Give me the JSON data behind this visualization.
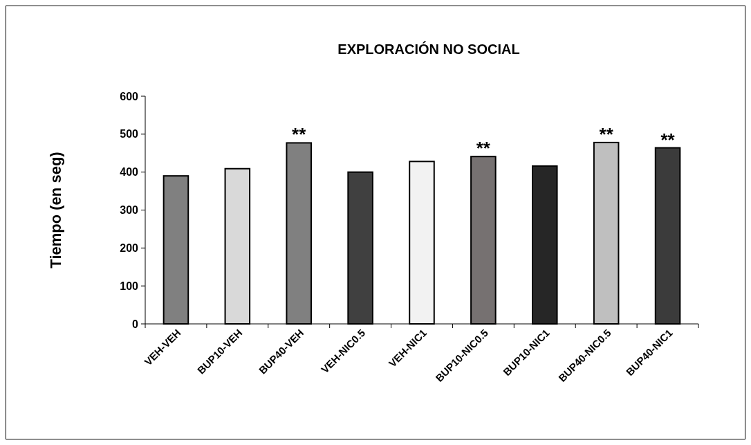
{
  "chart_data": {
    "type": "bar",
    "title": "EXPLORACIÓN NO SOCIAL",
    "ylabel": "Tiempo (en seg)",
    "categories": [
      "VEH-VEH",
      "BUP10-VEH",
      "BUP40-VEH",
      "VEH-NIC0.5",
      "VEH-NIC1",
      "BUP10-NIC0.5",
      "BUP10-NIC1",
      "BUP40-NIC0.5",
      "BUP40-NIC1"
    ],
    "values": [
      390,
      409,
      477,
      400,
      428,
      441,
      416,
      478,
      464
    ],
    "colors": [
      "#808080",
      "#d9d9d9",
      "#808080",
      "#404040",
      "#f2f2f2",
      "#767171",
      "#262626",
      "#bfbfbf",
      "#3b3b3b"
    ],
    "ylim": [
      0,
      600
    ],
    "yticks": [
      0,
      100,
      200,
      300,
      400,
      500,
      600
    ],
    "annotations": [
      {
        "text": "**",
        "x": "BUP40-VEH",
        "y": 477
      },
      {
        "text": "**",
        "x": "BUP10-NIC0.5",
        "y": 441
      },
      {
        "text": "**",
        "x": "BUP40-NIC0.5",
        "y": 478
      },
      {
        "text": "**",
        "x": "BUP40-NIC1",
        "y": 464
      }
    ]
  }
}
